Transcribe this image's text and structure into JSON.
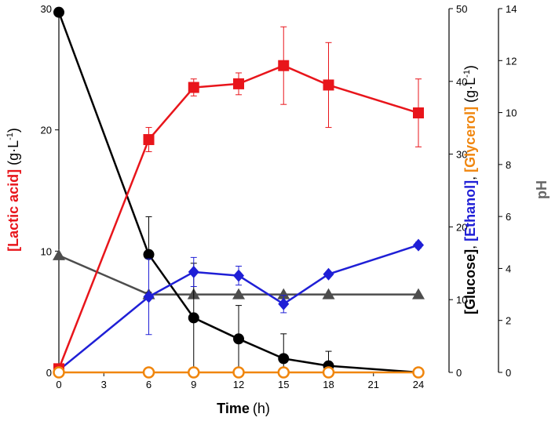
{
  "chart_data": {
    "type": "line",
    "x": [
      0,
      6,
      9,
      12,
      15,
      18,
      24
    ],
    "xlim": [
      0,
      24
    ],
    "x_ticks": [
      "0",
      "3",
      "6",
      "9",
      "12",
      "15",
      "18",
      "21",
      "24"
    ],
    "xlabel": {
      "main": "Time",
      "unit": "(h)"
    },
    "left_axis": {
      "ylim": [
        0,
        30
      ],
      "ticks": [
        "0",
        "10",
        "20",
        "30"
      ],
      "label_main": "[Lactic acid]",
      "label_unit": "(g·L",
      "label_sup": "-1",
      "label_close": ")"
    },
    "middle_axis": {
      "ylim": [
        0,
        50
      ],
      "ticks": [
        "0",
        "10",
        "20",
        "30",
        "40",
        "50"
      ],
      "label_glucose": "[Glucose]",
      "label_sep1": ", ",
      "label_ethanol": "[Ethanol]",
      "label_sep2": ", ",
      "label_glycerol": "[Glycerol]",
      "label_unit": "(g·L",
      "label_sup": "-1",
      "label_close": ")"
    },
    "right_axis": {
      "ylim": [
        0,
        14
      ],
      "ticks": [
        "0",
        "2",
        "4",
        "6",
        "8",
        "10",
        "12",
        "14"
      ],
      "label": "pH"
    },
    "series": [
      {
        "name": "Lactic acid",
        "axis": "left",
        "color": "#e8151b",
        "marker": "square",
        "values": [
          0.3,
          19.2,
          23.5,
          23.8,
          25.3,
          23.7,
          21.4
        ],
        "errors": [
          0,
          1.0,
          0.7,
          0.9,
          3.2,
          3.5,
          2.8
        ]
      },
      {
        "name": "Glucose",
        "axis": "middle",
        "color": "#000000",
        "marker": "circle",
        "values": [
          49.5,
          16.2,
          7.5,
          4.6,
          1.9,
          0.9,
          0
        ],
        "errors": [
          0,
          5.2,
          7.5,
          4.6,
          3.4,
          2.0,
          0
        ]
      },
      {
        "name": "Ethanol",
        "axis": "middle",
        "color": "#1f1fd6",
        "marker": "diamond",
        "values": [
          0.3,
          10.4,
          13.8,
          13.3,
          9.4,
          13.5,
          17.5
        ],
        "errors": [
          0,
          5.2,
          2.0,
          1.3,
          1.2,
          0,
          0.4
        ]
      },
      {
        "name": "Glycerol",
        "axis": "middle",
        "color": "#f0860e",
        "marker": "open-circle",
        "values": [
          0,
          0,
          0,
          0,
          0,
          0,
          0
        ],
        "errors": [
          0,
          0,
          0,
          0,
          0,
          0,
          0
        ]
      },
      {
        "name": "pH",
        "axis": "right",
        "color": "#4d4d4d",
        "marker": "triangle",
        "values": [
          4.5,
          3.0,
          3.0,
          3.0,
          3.0,
          3.0,
          3.0
        ],
        "errors": [
          0,
          0,
          0,
          0,
          0,
          0,
          0
        ]
      }
    ]
  }
}
